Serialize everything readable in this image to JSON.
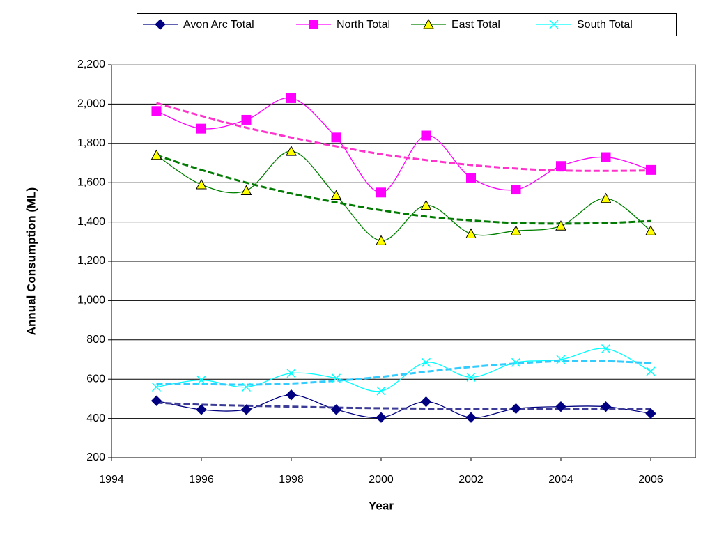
{
  "chart_data": {
    "type": "line",
    "y_label": "Annual Consumption (ML)",
    "x_label": "Year",
    "x": [
      1995,
      1996,
      1997,
      1998,
      1999,
      2000,
      2001,
      2002,
      2003,
      2004,
      2005,
      2006
    ],
    "xlim": [
      1994,
      2007
    ],
    "xticks": [
      1994,
      1996,
      1998,
      2000,
      2002,
      2004,
      2006
    ],
    "ylim": [
      200,
      2200
    ],
    "yticks": [
      200,
      400,
      600,
      800,
      {
        "value": 1000,
        "label": "1,000"
      },
      {
        "value": 1200,
        "label": "1,200"
      },
      {
        "value": 1400,
        "label": "1,400"
      },
      {
        "value": 1600,
        "label": "1,600"
      },
      {
        "value": 1800,
        "label": "1,800"
      },
      {
        "value": 2000,
        "label": "2,000"
      },
      {
        "value": 2200,
        "label": "2,200"
      }
    ],
    "grid": true,
    "legend": "top",
    "smooth": true,
    "series": [
      {
        "name": "Avon Arc Total",
        "color": "#000080",
        "marker": "diamond",
        "marker_fill": "#000080",
        "trend_color": "#3c3c96",
        "values": [
          490,
          445,
          445,
          520,
          445,
          405,
          485,
          405,
          450,
          460,
          460,
          425
        ],
        "trend": [
          480,
          470,
          465,
          460,
          455,
          452,
          450,
          448,
          447,
          447,
          448,
          448
        ]
      },
      {
        "name": "North Total",
        "color": "#ff00ff",
        "marker": "square",
        "marker_fill": "#ff00ff",
        "trend_color": "#ff33cc",
        "values": [
          1965,
          1875,
          1920,
          2030,
          1830,
          1550,
          1840,
          1625,
          1565,
          1685,
          1730,
          1665
        ],
        "trend": [
          2005,
          1940,
          1880,
          1830,
          1785,
          1745,
          1715,
          1690,
          1672,
          1662,
          1660,
          1662
        ]
      },
      {
        "name": "East Total",
        "color": "#008000",
        "marker": "triangle",
        "marker_fill": "#ffff00",
        "trend_color": "#007a00",
        "values": [
          1740,
          1590,
          1560,
          1760,
          1535,
          1305,
          1485,
          1340,
          1355,
          1380,
          1520,
          1355
        ],
        "trend": [
          1740,
          1665,
          1600,
          1545,
          1500,
          1460,
          1428,
          1408,
          1395,
          1392,
          1395,
          1405
        ]
      },
      {
        "name": "South Total",
        "color": "#00ffff",
        "marker": "x",
        "marker_fill": "none",
        "trend_color": "#33ccff",
        "values": [
          560,
          595,
          560,
          630,
          605,
          540,
          685,
          610,
          685,
          700,
          755,
          640
        ],
        "trend": [
          575,
          575,
          572,
          578,
          592,
          612,
          638,
          662,
          680,
          692,
          692,
          682
        ]
      }
    ]
  }
}
